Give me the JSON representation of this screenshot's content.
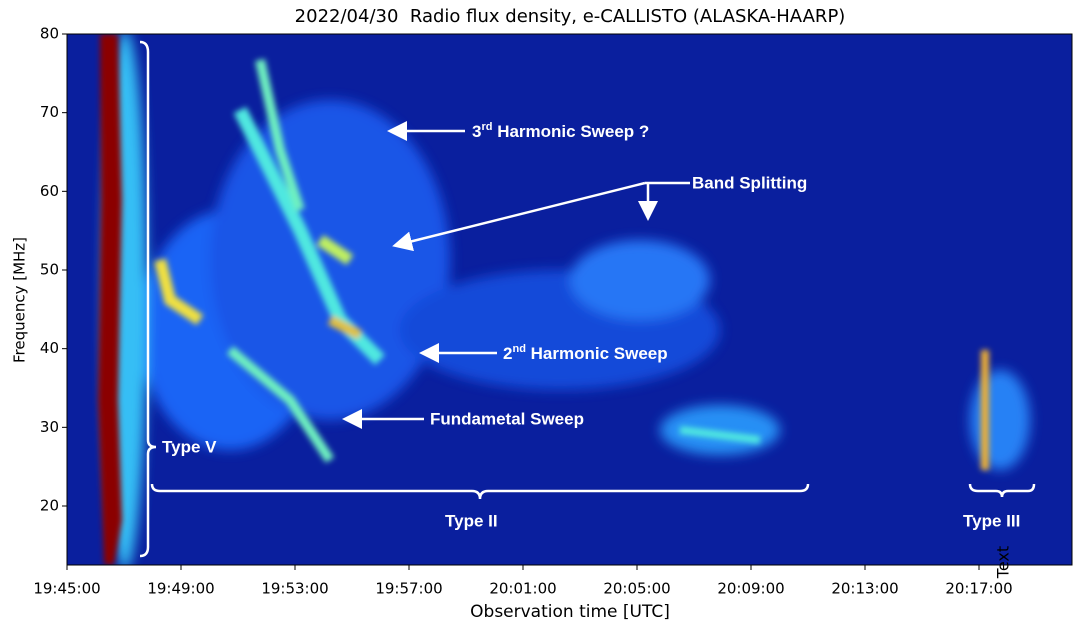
{
  "chart_data": {
    "type": "spectrogram",
    "title": "2022/04/30  Radio flux density, e-CALLISTO (ALASKA-HAARP)",
    "x_label": "Observation time [UTC]",
    "y_label": "Frequency [MHz]",
    "xticks": [
      "19:45:00",
      "19:49:00",
      "19:53:00",
      "19:57:00",
      "20:01:00",
      "20:05:00",
      "20:09:00",
      "20:13:00",
      "20:17:00"
    ],
    "ylim": [
      12.5,
      80
    ],
    "yticks": [
      20,
      30,
      40,
      50,
      60,
      70,
      80
    ],
    "annotations": {
      "third_harmonic": {
        "base": "3",
        "sup": "rd",
        "text": " Harmonic Sweep ?"
      },
      "band_splitting": "Band Splitting",
      "second_harmonic": {
        "base": "2",
        "sup": "nd",
        "text": " Harmonic Sweep"
      },
      "fundamental": "Fundametal Sweep",
      "type_v": "Type V",
      "type_ii": "Type II",
      "type_iii": "Type III",
      "text_marker": "Text"
    }
  }
}
